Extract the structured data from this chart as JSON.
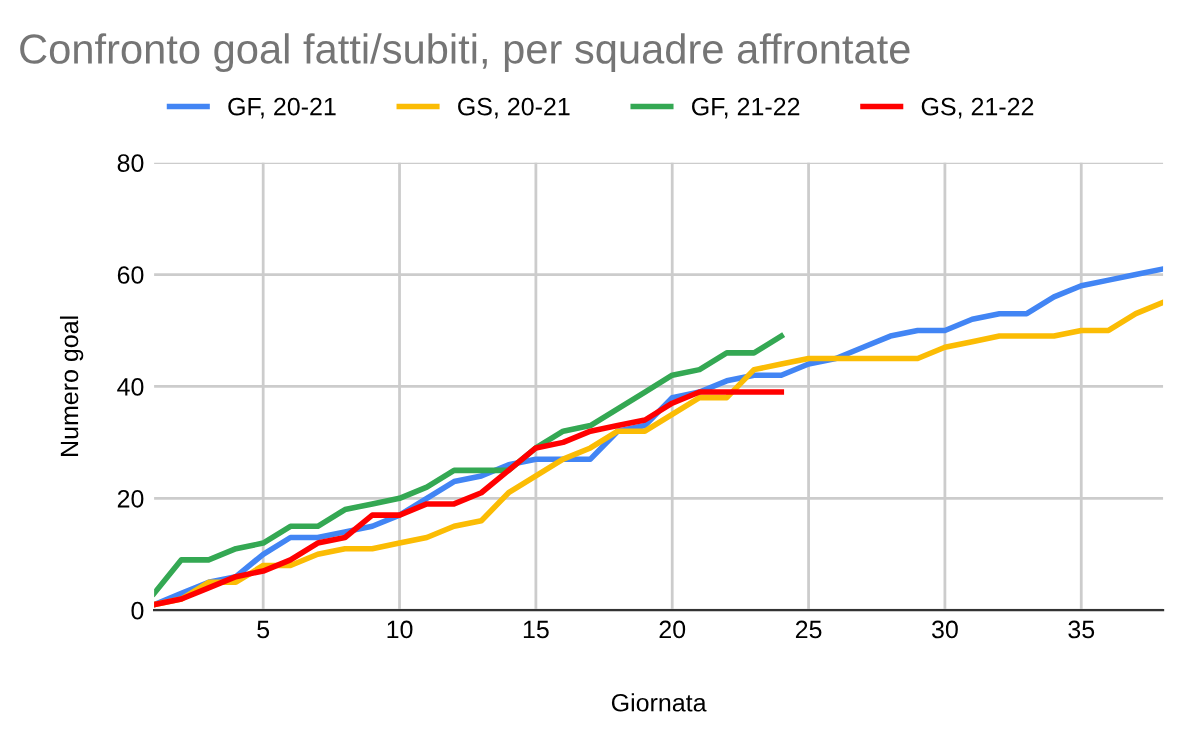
{
  "chart_data": {
    "type": "line",
    "title": "Confronto goal fatti/subiti, per squadre affrontate",
    "xlabel": "Giornata",
    "ylabel": "Numero goal",
    "x": [
      1,
      2,
      3,
      4,
      5,
      6,
      7,
      8,
      9,
      10,
      11,
      12,
      13,
      14,
      15,
      16,
      17,
      18,
      19,
      20,
      21,
      22,
      23,
      24,
      25,
      26,
      27,
      28,
      29,
      30,
      31,
      32,
      33,
      34,
      35,
      36,
      37,
      38
    ],
    "series": [
      {
        "name": "GF, 20-21",
        "color": "#4285f4",
        "values": [
          1,
          3,
          5,
          6,
          10,
          13,
          13,
          14,
          15,
          17,
          20,
          23,
          24,
          26,
          27,
          27,
          27,
          32,
          33,
          38,
          39,
          41,
          42,
          42,
          44,
          45,
          47,
          49,
          50,
          50,
          52,
          53,
          53,
          56,
          58,
          59,
          60,
          61
        ]
      },
      {
        "name": "GS, 20-21",
        "color": "#fbbc04",
        "values": [
          1,
          2,
          5,
          5,
          8,
          8,
          10,
          11,
          11,
          12,
          13,
          15,
          16,
          21,
          24,
          27,
          29,
          32,
          32,
          35,
          38,
          38,
          43,
          44,
          45,
          45,
          45,
          45,
          45,
          47,
          48,
          49,
          49,
          49,
          50,
          50,
          53,
          55
        ]
      },
      {
        "name": "GF, 21-22",
        "color": "#34a853",
        "values": [
          3,
          9,
          9,
          11,
          12,
          15,
          15,
          18,
          19,
          20,
          22,
          25,
          25,
          25,
          29,
          32,
          33,
          36,
          39,
          42,
          43,
          46,
          46,
          49,
          null,
          null,
          null,
          null,
          null,
          null,
          null,
          null,
          null,
          null,
          null,
          null,
          null,
          null
        ]
      },
      {
        "name": "GS, 21-22",
        "color": "#ff0000",
        "values": [
          1,
          2,
          4,
          6,
          7,
          9,
          12,
          13,
          17,
          17,
          19,
          19,
          21,
          25,
          29,
          30,
          32,
          33,
          34,
          37,
          39,
          39,
          39,
          39,
          null,
          null,
          null,
          null,
          null,
          null,
          null,
          null,
          null,
          null,
          null,
          null,
          null,
          null
        ]
      }
    ],
    "xlim": [
      1,
      38
    ],
    "xticks": [
      5,
      10,
      15,
      20,
      25,
      30,
      35
    ],
    "ylim": [
      0,
      80
    ],
    "yticks": [
      0,
      20,
      40,
      60,
      80
    ],
    "grid": true,
    "legend": "top"
  }
}
